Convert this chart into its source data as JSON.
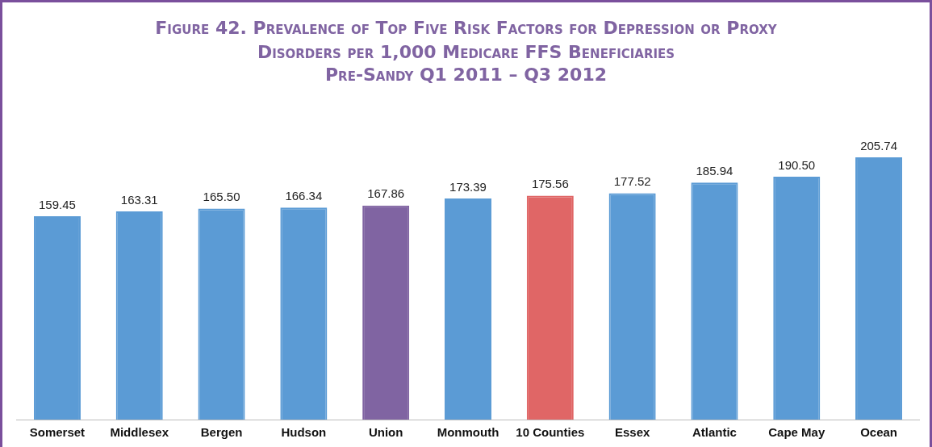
{
  "chart_data": {
    "type": "bar",
    "title": "Figure 42. Prevalence of Top Five Risk Factors for Depression or Proxy Disorders per 1,000 Medicare FFS Beneficiaries",
    "subtitle": "Pre-Sandy Q1 2011 – Q3 2012",
    "categories": [
      "Somerset",
      "Middlesex",
      "Bergen",
      "Hudson",
      "Union",
      "Monmouth",
      "10 Counties",
      "Essex",
      "Atlantic",
      "Cape May",
      "Ocean"
    ],
    "values": [
      159.45,
      163.31,
      165.5,
      166.34,
      167.86,
      173.39,
      175.56,
      177.52,
      185.94,
      190.5,
      205.74
    ],
    "colors": [
      "#5b9bd5",
      "#5b9bd5",
      "#5b9bd5",
      "#5b9bd5",
      "#8064a2",
      "#5b9bd5",
      "#e06666",
      "#5b9bd5",
      "#5b9bd5",
      "#5b9bd5",
      "#5b9bd5"
    ],
    "value_labels": [
      "159.45",
      "163.31",
      "165.50",
      "166.34",
      "167.86",
      "173.39",
      "175.56",
      "177.52",
      "185.94",
      "190.50",
      "205.74"
    ],
    "legend": false,
    "grid": false
  }
}
